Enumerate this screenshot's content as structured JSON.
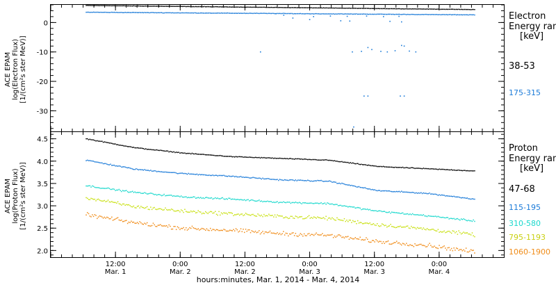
{
  "chart_data": [
    {
      "type": "scatter",
      "ylabel": [
        "ACE EPAM",
        "log(Electron Flux)",
        "[1/(cm²s ster MeV)]"
      ],
      "ylim": [
        -37,
        6
      ],
      "yticks": [
        0,
        -10,
        -20,
        -30
      ],
      "legend_title": [
        "Electron",
        "Energy ran",
        "[keV]"
      ],
      "series": [
        {
          "name": "38-53",
          "color": "#000000",
          "base": [
            5.8,
            4.4
          ],
          "scatter": 0.06
        },
        {
          "name": "175-315",
          "color": "#1a7ad8",
          "base": [
            3.5,
            2.6
          ],
          "scatter": 0.08
        }
      ],
      "outliers": [
        {
          "x": 1.74,
          "y": 3.0
        },
        {
          "x": 1.8,
          "y": 2.5
        },
        {
          "x": 1.87,
          "y": 1.5
        },
        {
          "x": 2.0,
          "y": 1.0
        },
        {
          "x": 2.03,
          "y": 2.0
        },
        {
          "x": 2.16,
          "y": 2.2
        },
        {
          "x": 2.24,
          "y": 0.6
        },
        {
          "x": 2.29,
          "y": 2.1
        },
        {
          "x": 2.31,
          "y": 0.5
        },
        {
          "x": 2.44,
          "y": 2.2
        },
        {
          "x": 2.57,
          "y": 2.0
        },
        {
          "x": 2.62,
          "y": 0.4
        },
        {
          "x": 2.69,
          "y": 2.1
        },
        {
          "x": 2.71,
          "y": 0.2
        },
        {
          "x": 1.62,
          "y": -10.0
        },
        {
          "x": 2.33,
          "y": -10.0
        },
        {
          "x": 2.4,
          "y": -9.8
        },
        {
          "x": 2.45,
          "y": -8.5
        },
        {
          "x": 2.48,
          "y": -9.2
        },
        {
          "x": 2.55,
          "y": -9.8
        },
        {
          "x": 2.6,
          "y": -10.0
        },
        {
          "x": 2.66,
          "y": -9.6
        },
        {
          "x": 2.71,
          "y": -7.8
        },
        {
          "x": 2.73,
          "y": -8.0
        },
        {
          "x": 2.77,
          "y": -9.7
        },
        {
          "x": 2.82,
          "y": -10.0
        },
        {
          "x": 2.42,
          "y": -25.0
        },
        {
          "x": 2.45,
          "y": -25.0
        },
        {
          "x": 2.7,
          "y": -25.0
        },
        {
          "x": 2.73,
          "y": -25.0
        },
        {
          "x": 2.34,
          "y": -35.5
        }
      ]
    },
    {
      "type": "scatter",
      "ylabel": [
        "ACE EPAM",
        "log(Proton Flux)",
        "[1/(cm²s ster MeV)]"
      ],
      "ylim": [
        1.85,
        4.65
      ],
      "yticks": [
        4.5,
        4.0,
        3.5,
        3.0,
        2.5,
        2.0
      ],
      "legend_title": [
        "Proton",
        "Energy ran",
        "[keV]"
      ],
      "series": [
        {
          "name": "47-68",
          "color": "#000000",
          "base": [
            4.5,
            4.3,
            4.18,
            4.1,
            4.06,
            4.02,
            3.88,
            3.83,
            3.78
          ],
          "scatter": 0.012
        },
        {
          "name": "115-195",
          "color": "#1a7ad8",
          "base": [
            4.02,
            3.82,
            3.72,
            3.66,
            3.58,
            3.55,
            3.34,
            3.28,
            3.15
          ],
          "scatter": 0.014
        },
        {
          "name": "310-580",
          "color": "#18d8cc",
          "base": [
            3.45,
            3.3,
            3.2,
            3.15,
            3.08,
            3.05,
            2.88,
            2.78,
            2.66
          ],
          "scatter": 0.016
        },
        {
          "name": "795-1193",
          "color": "#c8e010",
          "base": [
            3.18,
            2.98,
            2.88,
            2.82,
            2.76,
            2.72,
            2.58,
            2.48,
            2.35
          ],
          "scatter": 0.03
        },
        {
          "name": "1060-1900",
          "color": "#f08c18",
          "base": [
            2.8,
            2.62,
            2.5,
            2.45,
            2.38,
            2.34,
            2.2,
            2.12,
            1.97
          ],
          "scatter": 0.03
        }
      ]
    }
  ],
  "x_axis": {
    "xlim": [
      0.0,
      3.5
    ],
    "ticks": [
      {
        "x": 0.0,
        "hour": "",
        "date": ""
      },
      {
        "x": 0.5,
        "hour": "12:00",
        "date": "Mar. 1"
      },
      {
        "x": 1.0,
        "hour": "0:00",
        "date": "Mar. 2"
      },
      {
        "x": 1.5,
        "hour": "12:00",
        "date": "Mar. 2"
      },
      {
        "x": 2.0,
        "hour": "0:00",
        "date": "Mar. 3"
      },
      {
        "x": 2.5,
        "hour": "12:00",
        "date": "Mar. 3"
      },
      {
        "x": 3.0,
        "hour": "0:00",
        "date": "Mar. 4"
      }
    ],
    "xlabel": "hours:minutes, Mar.  1, 2014 - Mar.  4, 2014",
    "data_start": 0.27,
    "data_end": 3.27
  }
}
